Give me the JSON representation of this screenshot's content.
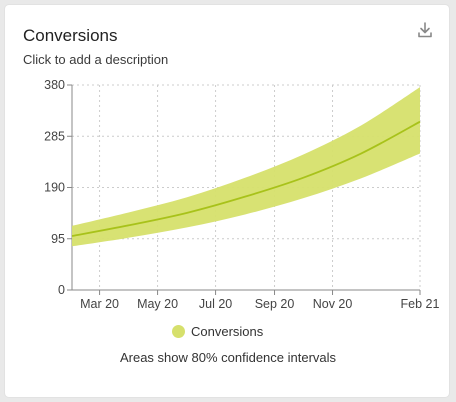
{
  "card": {
    "title": "Conversions",
    "subtitle": "Click to add a description",
    "download_icon": "download-icon",
    "note": "Areas show 80% confidence intervals"
  },
  "colors": {
    "line": "#a8c21a",
    "band": "#d6e06c",
    "grid": "#cccccc",
    "axis": "#888888"
  },
  "chart_data": {
    "type": "area",
    "title": "",
    "xlabel": "",
    "ylabel": "",
    "ylim": [
      0,
      380
    ],
    "yticks": [
      0,
      95,
      190,
      285,
      380
    ],
    "xlim": [
      "2020-02-01",
      "2021-02-01"
    ],
    "xticks": [
      {
        "date": "2020-03-01",
        "label": "Mar 20"
      },
      {
        "date": "2020-05-01",
        "label": "May 20"
      },
      {
        "date": "2020-07-01",
        "label": "Jul 20"
      },
      {
        "date": "2020-09-01",
        "label": "Sep 20"
      },
      {
        "date": "2020-11-01",
        "label": "Nov 20"
      },
      {
        "date": "2021-02-01",
        "label": "Feb 21"
      }
    ],
    "grid": true,
    "legend_position": "bottom",
    "series": [
      {
        "name": "Conversions",
        "x": [
          "2020-02-01",
          "2020-04-01",
          "2020-06-01",
          "2020-08-01",
          "2020-10-01",
          "2020-12-01",
          "2021-02-01"
        ],
        "values": [
          100,
          120,
          143,
          173,
          208,
          253,
          312
        ],
        "lower": [
          81,
          97,
          116,
          140,
          170,
          207,
          253
        ],
        "upper": [
          119,
          144,
          172,
          208,
          251,
          305,
          376
        ]
      }
    ]
  }
}
